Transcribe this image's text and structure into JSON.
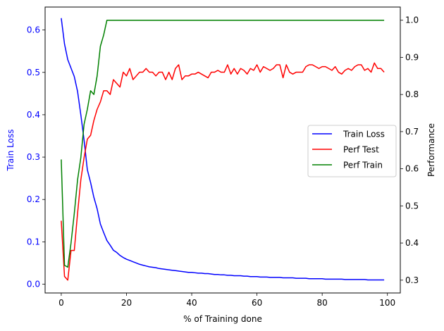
{
  "chart_data": {
    "type": "line",
    "xlabel": "% of Training done",
    "ylabel_left": "Train Loss",
    "ylabel_right": "Performance",
    "xlim": [
      -4.95,
      103.95
    ],
    "ylim_left": [
      -0.0207,
      0.6542
    ],
    "ylim_right": [
      0.2655,
      1.0355
    ],
    "x_ticks": [
      0,
      20,
      40,
      60,
      80,
      100
    ],
    "y_left_ticks": [
      0.0,
      0.1,
      0.2,
      0.3,
      0.4,
      0.5,
      0.6
    ],
    "y_right_ticks": [
      0.3,
      0.4,
      0.5,
      0.6,
      0.7,
      0.8,
      0.9,
      1.0
    ],
    "legend_placement": "center-right",
    "grid": false,
    "colors": {
      "train_loss": "#0000ff",
      "perf_test": "#ff0000",
      "perf_train": "#008000",
      "left_axis_text": "#0000ff"
    },
    "series": [
      {
        "name": "Train Loss",
        "axis": "left",
        "x": [
          0,
          1,
          2,
          3,
          4,
          5,
          6,
          7,
          8,
          9,
          10,
          11,
          12,
          13,
          14,
          15,
          16,
          17,
          18,
          19,
          20,
          21,
          22,
          23,
          24,
          25,
          26,
          27,
          28,
          29,
          30,
          31,
          32,
          33,
          34,
          35,
          36,
          37,
          38,
          39,
          40,
          41,
          42,
          43,
          44,
          45,
          46,
          47,
          48,
          49,
          50,
          51,
          52,
          53,
          54,
          55,
          56,
          57,
          58,
          59,
          60,
          61,
          62,
          63,
          64,
          65,
          66,
          67,
          68,
          69,
          70,
          71,
          72,
          73,
          74,
          75,
          76,
          77,
          78,
          79,
          80,
          81,
          82,
          83,
          84,
          85,
          86,
          87,
          88,
          89,
          90,
          91,
          92,
          93,
          94,
          95,
          96,
          97,
          98,
          99
        ],
        "values": [
          0.628,
          0.567,
          0.53,
          0.51,
          0.49,
          0.455,
          0.4,
          0.34,
          0.27,
          0.24,
          0.205,
          0.178,
          0.142,
          0.122,
          0.103,
          0.092,
          0.08,
          0.075,
          0.068,
          0.063,
          0.059,
          0.056,
          0.053,
          0.05,
          0.047,
          0.045,
          0.043,
          0.041,
          0.04,
          0.039,
          0.037,
          0.036,
          0.035,
          0.034,
          0.033,
          0.032,
          0.031,
          0.03,
          0.029,
          0.028,
          0.028,
          0.027,
          0.026,
          0.026,
          0.025,
          0.025,
          0.024,
          0.023,
          0.023,
          0.022,
          0.022,
          0.021,
          0.021,
          0.02,
          0.02,
          0.02,
          0.019,
          0.019,
          0.018,
          0.018,
          0.018,
          0.017,
          0.017,
          0.017,
          0.016,
          0.016,
          0.016,
          0.016,
          0.015,
          0.015,
          0.015,
          0.015,
          0.014,
          0.014,
          0.014,
          0.014,
          0.013,
          0.013,
          0.013,
          0.013,
          0.013,
          0.012,
          0.012,
          0.012,
          0.012,
          0.012,
          0.012,
          0.011,
          0.011,
          0.011,
          0.011,
          0.011,
          0.011,
          0.011,
          0.01,
          0.01,
          0.01,
          0.01,
          0.01,
          0.01
        ]
      },
      {
        "name": "Perf Test",
        "axis": "right",
        "x": [
          0,
          1,
          2,
          3,
          4,
          5,
          6,
          7,
          8,
          9,
          10,
          11,
          12,
          13,
          14,
          15,
          16,
          17,
          18,
          19,
          20,
          21,
          22,
          23,
          24,
          25,
          26,
          27,
          28,
          29,
          30,
          31,
          32,
          33,
          34,
          35,
          36,
          37,
          38,
          39,
          40,
          41,
          42,
          43,
          44,
          45,
          46,
          47,
          48,
          49,
          50,
          51,
          52,
          53,
          54,
          55,
          56,
          57,
          58,
          59,
          60,
          61,
          62,
          63,
          64,
          65,
          66,
          67,
          68,
          69,
          70,
          71,
          72,
          73,
          74,
          75,
          76,
          77,
          78,
          79,
          80,
          81,
          82,
          83,
          84,
          85,
          86,
          87,
          88,
          89,
          90,
          91,
          92,
          93,
          94,
          95,
          96,
          97,
          98,
          99
        ],
        "values": [
          0.46,
          0.31,
          0.3,
          0.38,
          0.38,
          0.48,
          0.57,
          0.63,
          0.68,
          0.69,
          0.73,
          0.76,
          0.78,
          0.81,
          0.81,
          0.8,
          0.84,
          0.83,
          0.82,
          0.86,
          0.85,
          0.87,
          0.84,
          0.85,
          0.86,
          0.86,
          0.87,
          0.86,
          0.86,
          0.85,
          0.86,
          0.86,
          0.84,
          0.86,
          0.84,
          0.87,
          0.88,
          0.84,
          0.85,
          0.85,
          0.855,
          0.855,
          0.86,
          0.855,
          0.85,
          0.845,
          0.86,
          0.86,
          0.865,
          0.86,
          0.86,
          0.88,
          0.855,
          0.87,
          0.855,
          0.87,
          0.865,
          0.855,
          0.87,
          0.865,
          0.88,
          0.86,
          0.875,
          0.87,
          0.865,
          0.87,
          0.88,
          0.88,
          0.845,
          0.88,
          0.86,
          0.855,
          0.86,
          0.86,
          0.86,
          0.875,
          0.88,
          0.88,
          0.875,
          0.87,
          0.875,
          0.875,
          0.87,
          0.865,
          0.875,
          0.86,
          0.855,
          0.865,
          0.87,
          0.865,
          0.875,
          0.88,
          0.88,
          0.865,
          0.87,
          0.86,
          0.885,
          0.87,
          0.87,
          0.86
        ]
      },
      {
        "name": "Perf Train",
        "axis": "right",
        "x": [
          0,
          1,
          2,
          3,
          4,
          5,
          6,
          7,
          8,
          9,
          10,
          11,
          12,
          13,
          14,
          15,
          16,
          17,
          18,
          19,
          20,
          21,
          22,
          23,
          24,
          25,
          26,
          27,
          28,
          29,
          30,
          31,
          32,
          33,
          34,
          35,
          36,
          37,
          38,
          39,
          40,
          41,
          42,
          43,
          44,
          45,
          46,
          47,
          48,
          49,
          50,
          51,
          52,
          53,
          54,
          55,
          56,
          57,
          58,
          59,
          60,
          61,
          62,
          63,
          64,
          65,
          66,
          67,
          68,
          69,
          70,
          71,
          72,
          73,
          74,
          75,
          76,
          77,
          78,
          79,
          80,
          81,
          82,
          83,
          84,
          85,
          86,
          87,
          88,
          89,
          90,
          91,
          92,
          93,
          94,
          95,
          96,
          97,
          98,
          99
        ],
        "values": [
          0.625,
          0.34,
          0.335,
          0.4,
          0.48,
          0.57,
          0.63,
          0.72,
          0.76,
          0.81,
          0.8,
          0.85,
          0.93,
          0.96,
          1.0,
          1.0,
          1.0,
          1.0,
          1.0,
          1.0,
          1.0,
          1.0,
          1.0,
          1.0,
          1.0,
          1.0,
          1.0,
          1.0,
          1.0,
          1.0,
          1.0,
          1.0,
          1.0,
          1.0,
          1.0,
          1.0,
          1.0,
          1.0,
          1.0,
          1.0,
          1.0,
          1.0,
          1.0,
          1.0,
          1.0,
          1.0,
          1.0,
          1.0,
          1.0,
          1.0,
          1.0,
          1.0,
          1.0,
          1.0,
          1.0,
          1.0,
          1.0,
          1.0,
          1.0,
          1.0,
          1.0,
          1.0,
          1.0,
          1.0,
          1.0,
          1.0,
          1.0,
          1.0,
          1.0,
          1.0,
          1.0,
          1.0,
          1.0,
          1.0,
          1.0,
          1.0,
          1.0,
          1.0,
          1.0,
          1.0,
          1.0,
          1.0,
          1.0,
          1.0,
          1.0,
          1.0,
          1.0,
          1.0,
          1.0,
          1.0,
          1.0,
          1.0,
          1.0,
          1.0,
          1.0,
          1.0,
          1.0,
          1.0,
          1.0,
          1.0
        ]
      }
    ]
  }
}
